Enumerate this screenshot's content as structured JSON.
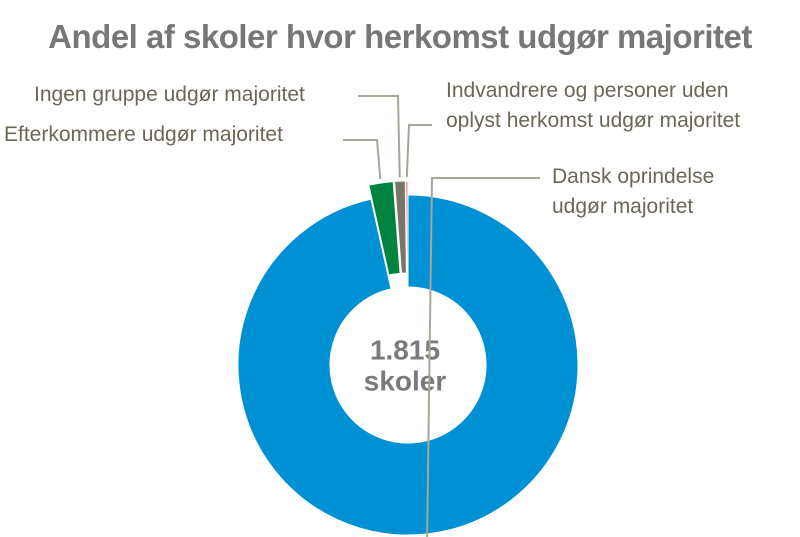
{
  "chart_data": {
    "type": "donut",
    "title": "Andel af skoler hvor herkomst udgør majoritet",
    "center_label": [
      "1.815",
      "skoler"
    ],
    "categories": [
      "Dansk oprindelse udgør majoritet",
      "Efterkommere udgør majoritet",
      "Ingen gruppe udgør majoritet",
      "Indvandrere og personer uden oplyst herkomst udgør majoritet"
    ],
    "values": [
      96.5,
      2.3,
      1.0,
      0.2
    ],
    "colors": [
      "#0090d4",
      "#00843d",
      "#7a7566",
      "#e8707a"
    ]
  }
}
